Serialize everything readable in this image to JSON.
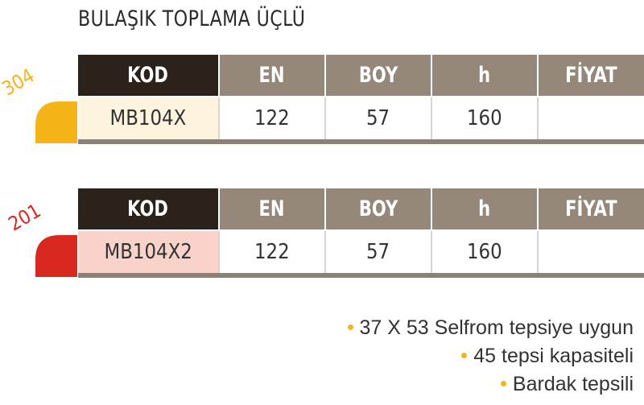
{
  "title": "BULAŞIK TOPLAMA ÜÇLÜ",
  "headers": [
    "KOD",
    "EN",
    "BOY",
    "h",
    "FİYAT"
  ],
  "tables": [
    {
      "material": "304",
      "accent": "#f6b318",
      "row": {
        "code": "MB104X",
        "en": "122",
        "boy": "57",
        "h": "160",
        "price": ""
      }
    },
    {
      "material": "201",
      "accent": "#d9281d",
      "row": {
        "code": "MB104X2",
        "en": "122",
        "boy": "57",
        "h": "160",
        "price": ""
      }
    }
  ],
  "features": [
    "37 X 53 Selfrom tepsiye uygun",
    "45 tepsi kapasiteli",
    "Bardak tepsili"
  ],
  "colors": {
    "header_dark": "#2c221c",
    "header_taupe": "#958779",
    "bullet": "#f6b318"
  }
}
